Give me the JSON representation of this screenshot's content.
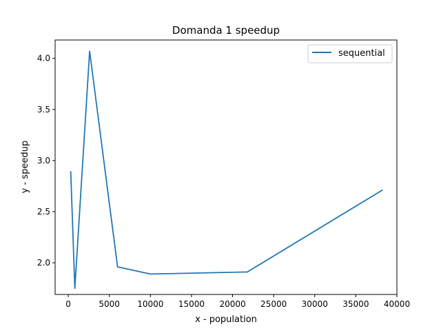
{
  "chart_data": {
    "type": "line",
    "title": "Domanda 1 speedup",
    "xlabel": "x - population",
    "ylabel": "y - speedup",
    "xlim": [
      -1600,
      40000
    ],
    "ylim": [
      1.69,
      4.18
    ],
    "xticks": [
      0,
      5000,
      10000,
      15000,
      20000,
      25000,
      30000,
      35000,
      40000
    ],
    "xtick_labels": [
      "0",
      "5000",
      "10000",
      "15000",
      "20000",
      "25000",
      "30000",
      "35000",
      "40000"
    ],
    "yticks": [
      2.0,
      2.5,
      3.0,
      3.5,
      4.0
    ],
    "ytick_labels": [
      "2.0",
      "2.5",
      "3.0",
      "3.5",
      "4.0"
    ],
    "grid": false,
    "legend_position": "top-right",
    "series": [
      {
        "name": "sequential",
        "color": "#1f77b4",
        "x": [
          300,
          800,
          2600,
          6000,
          10000,
          21800,
          38200
        ],
        "y": [
          2.89,
          1.75,
          4.07,
          1.96,
          1.89,
          1.91,
          2.71
        ]
      }
    ]
  }
}
